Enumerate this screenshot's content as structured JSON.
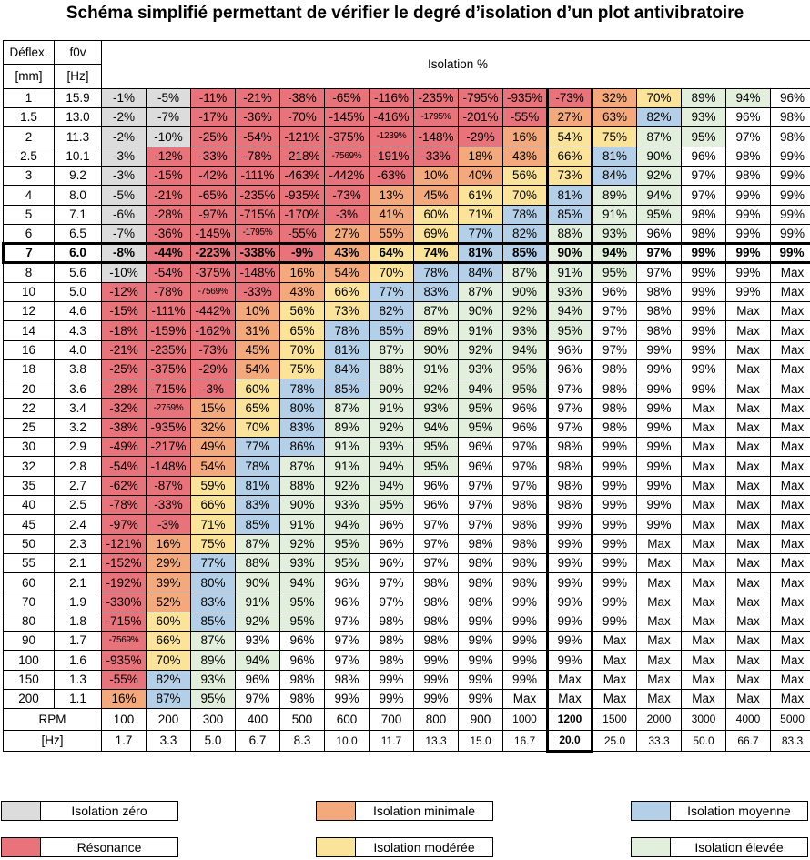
{
  "title": "Schéma simplifié permettant de vérifier le degré d’isolation d’un plot antivibratoire",
  "header": {
    "col1_row1": "Déflex.",
    "col1_row2": "[mm]",
    "col2_row1": "f0v",
    "col2_row2": "[Hz]",
    "isolation_label": "Isolation %"
  },
  "colors": {
    "zero": "#dcdcdc",
    "resonance": "#e8737a",
    "minimale": "#f3a97c",
    "moderee": "#fbe49a",
    "moyenne": "#b4cfe8",
    "elevee": "#e2efdc",
    "none": "#ffffff"
  },
  "highlight_row": "7",
  "highlight_col": 10,
  "rows": [
    {
      "d": "1",
      "f": "15.9",
      "v": [
        "-1%",
        "-5%",
        "-11%",
        "-21%",
        "-38%",
        "-65%",
        "-116%",
        "-235%",
        "-795%",
        "-935%",
        "-73%",
        "32%",
        "70%",
        "89%",
        "94%",
        "96%"
      ],
      "c": "ZZRRRRRRRRRMOEEN"
    },
    {
      "d": "1.5",
      "f": "13.0",
      "v": [
        "-2%",
        "-7%",
        "-17%",
        "-36%",
        "-70%",
        "-145%",
        "-416%",
        "-1795%",
        "-201%",
        "-55%",
        "27%",
        "63%",
        "82%",
        "93%",
        "96%",
        "98%"
      ],
      "c": "ZZRRRRRRRRMMBENN"
    },
    {
      "d": "2",
      "f": "11.3",
      "v": [
        "-2%",
        "-10%",
        "-25%",
        "-54%",
        "-121%",
        "-375%",
        "-1239%",
        "-148%",
        "-29%",
        "16%",
        "54%",
        "75%",
        "87%",
        "95%",
        "97%",
        "98%"
      ],
      "c": "ZZRRRRRRRMOOEENN"
    },
    {
      "d": "2.5",
      "f": "10.1",
      "v": [
        "-3%",
        "-12%",
        "-33%",
        "-78%",
        "-218%",
        "-7569%",
        "-191%",
        "-33%",
        "18%",
        "43%",
        "66%",
        "81%",
        "90%",
        "96%",
        "98%",
        "99%"
      ],
      "c": "ZRRRRRRRMMOBENNN"
    },
    {
      "d": "3",
      "f": "9.2",
      "v": [
        "-3%",
        "-15%",
        "-42%",
        "-111%",
        "-463%",
        "-442%",
        "-63%",
        "10%",
        "40%",
        "56%",
        "73%",
        "84%",
        "92%",
        "97%",
        "98%",
        "99%"
      ],
      "c": "ZRRRRRRMMOOBENNN"
    },
    {
      "d": "4",
      "f": "8.0",
      "v": [
        "-5%",
        "-21%",
        "-65%",
        "-235%",
        "-935%",
        "-73%",
        "13%",
        "45%",
        "61%",
        "70%",
        "81%",
        "89%",
        "94%",
        "97%",
        "99%",
        "99%"
      ],
      "c": "ZRRRRRMMOOBEENNN"
    },
    {
      "d": "5",
      "f": "7.1",
      "v": [
        "-6%",
        "-28%",
        "-97%",
        "-715%",
        "-170%",
        "-3%",
        "41%",
        "60%",
        "71%",
        "78%",
        "85%",
        "91%",
        "95%",
        "98%",
        "99%",
        "99%"
      ],
      "c": "ZRRRRRMOOBBEENNN"
    },
    {
      "d": "6",
      "f": "6.5",
      "v": [
        "-7%",
        "-36%",
        "-145%",
        "-1795%",
        "-55%",
        "27%",
        "55%",
        "69%",
        "77%",
        "82%",
        "88%",
        "93%",
        "96%",
        "98%",
        "99%",
        "99%"
      ],
      "c": "ZRRRRMMOBBEENNNN"
    },
    {
      "d": "7",
      "f": "6.0",
      "v": [
        "-8%",
        "-44%",
        "-223%",
        "-338%",
        "-9%",
        "43%",
        "64%",
        "74%",
        "81%",
        "85%",
        "90%",
        "94%",
        "97%",
        "99%",
        "99%",
        "99%"
      ],
      "c": "ZRRRRMOOBBEENNNN"
    },
    {
      "d": "8",
      "f": "5.6",
      "v": [
        "-10%",
        "-54%",
        "-375%",
        "-148%",
        "16%",
        "54%",
        "70%",
        "78%",
        "84%",
        "87%",
        "91%",
        "95%",
        "97%",
        "99%",
        "99%",
        "Max"
      ],
      "c": "ZRRRMMOBBEEENNNN"
    },
    {
      "d": "10",
      "f": "5.0",
      "v": [
        "-12%",
        "-78%",
        "-7569%",
        "-33%",
        "43%",
        "66%",
        "77%",
        "83%",
        "87%",
        "90%",
        "93%",
        "96%",
        "98%",
        "99%",
        "99%",
        "Max"
      ],
      "c": "RRRRMOBBEEENNNNN"
    },
    {
      "d": "12",
      "f": "4.6",
      "v": [
        "-15%",
        "-111%",
        "-442%",
        "10%",
        "56%",
        "73%",
        "82%",
        "87%",
        "90%",
        "92%",
        "94%",
        "97%",
        "98%",
        "99%",
        "Max",
        "Max"
      ],
      "c": "RRRMOOBEEEENNNNN"
    },
    {
      "d": "14",
      "f": "4.3",
      "v": [
        "-18%",
        "-159%",
        "-162%",
        "31%",
        "65%",
        "78%",
        "85%",
        "89%",
        "91%",
        "93%",
        "95%",
        "97%",
        "98%",
        "99%",
        "Max",
        "Max"
      ],
      "c": "RRRMOBBEEEENNNNN"
    },
    {
      "d": "16",
      "f": "4.0",
      "v": [
        "-21%",
        "-235%",
        "-73%",
        "45%",
        "70%",
        "81%",
        "87%",
        "90%",
        "92%",
        "94%",
        "96%",
        "97%",
        "99%",
        "99%",
        "Max",
        "Max"
      ],
      "c": "RRRMOBEEEENNNNNN"
    },
    {
      "d": "18",
      "f": "3.8",
      "v": [
        "-25%",
        "-375%",
        "-29%",
        "54%",
        "75%",
        "84%",
        "88%",
        "91%",
        "93%",
        "95%",
        "96%",
        "98%",
        "99%",
        "99%",
        "Max",
        "Max"
      ],
      "c": "RRRMOBEEEENNNNNN"
    },
    {
      "d": "20",
      "f": "3.6",
      "v": [
        "-28%",
        "-715%",
        "-3%",
        "60%",
        "78%",
        "85%",
        "90%",
        "92%",
        "94%",
        "95%",
        "97%",
        "98%",
        "99%",
        "99%",
        "Max",
        "Max"
      ],
      "c": "RRROBBEEEENNNNNN"
    },
    {
      "d": "22",
      "f": "3.4",
      "v": [
        "-32%",
        "-2759%",
        "15%",
        "65%",
        "80%",
        "87%",
        "91%",
        "93%",
        "95%",
        "96%",
        "97%",
        "98%",
        "99%",
        "Max",
        "Max",
        "Max"
      ],
      "c": "RRMOBEEEENNNNNNN"
    },
    {
      "d": "25",
      "f": "3.2",
      "v": [
        "-38%",
        "-935%",
        "32%",
        "70%",
        "83%",
        "89%",
        "92%",
        "94%",
        "95%",
        "96%",
        "97%",
        "98%",
        "99%",
        "Max",
        "Max",
        "Max"
      ],
      "c": "RRMOBEEEENNNNNNN"
    },
    {
      "d": "30",
      "f": "2.9",
      "v": [
        "-49%",
        "-217%",
        "49%",
        "77%",
        "86%",
        "91%",
        "93%",
        "95%",
        "96%",
        "97%",
        "98%",
        "99%",
        "99%",
        "Max",
        "Max",
        "Max"
      ],
      "c": "RRMBBEEENNNNNNNN"
    },
    {
      "d": "32",
      "f": "2.8",
      "v": [
        "-54%",
        "-148%",
        "54%",
        "78%",
        "87%",
        "91%",
        "94%",
        "95%",
        "96%",
        "97%",
        "98%",
        "99%",
        "99%",
        "Max",
        "Max",
        "Max"
      ],
      "c": "RRMBEEEENNNNNNNN"
    },
    {
      "d": "35",
      "f": "2.7",
      "v": [
        "-62%",
        "-87%",
        "59%",
        "81%",
        "88%",
        "92%",
        "94%",
        "96%",
        "97%",
        "97%",
        "98%",
        "99%",
        "99%",
        "Max",
        "Max",
        "Max"
      ],
      "c": "RROBEEENNNNNNNNN"
    },
    {
      "d": "40",
      "f": "2.5",
      "v": [
        "-78%",
        "-33%",
        "66%",
        "83%",
        "90%",
        "93%",
        "95%",
        "96%",
        "97%",
        "98%",
        "98%",
        "99%",
        "99%",
        "Max",
        "Max",
        "Max"
      ],
      "c": "RROBEEENNNNNNNNN"
    },
    {
      "d": "45",
      "f": "2.4",
      "v": [
        "-97%",
        "-3%",
        "71%",
        "85%",
        "91%",
        "94%",
        "96%",
        "97%",
        "97%",
        "98%",
        "99%",
        "99%",
        "99%",
        "Max",
        "Max",
        "Max"
      ],
      "c": "RROBEENNNNNNNNNN"
    },
    {
      "d": "50",
      "f": "2.3",
      "v": [
        "-121%",
        "16%",
        "75%",
        "87%",
        "92%",
        "95%",
        "96%",
        "97%",
        "98%",
        "98%",
        "99%",
        "99%",
        "Max",
        "Max",
        "Max",
        "Max"
      ],
      "c": "RMOEEENNNNNNNNNN"
    },
    {
      "d": "55",
      "f": "2.1",
      "v": [
        "-152%",
        "29%",
        "77%",
        "88%",
        "93%",
        "95%",
        "96%",
        "97%",
        "98%",
        "98%",
        "99%",
        "99%",
        "Max",
        "Max",
        "Max",
        "Max"
      ],
      "c": "RMBEEENNNNNNNNNN"
    },
    {
      "d": "60",
      "f": "2.1",
      "v": [
        "-192%",
        "39%",
        "80%",
        "90%",
        "94%",
        "96%",
        "97%",
        "98%",
        "98%",
        "98%",
        "99%",
        "99%",
        "Max",
        "Max",
        "Max",
        "Max"
      ],
      "c": "RMBEENNNNNNNNNNN"
    },
    {
      "d": "70",
      "f": "1.9",
      "v": [
        "-330%",
        "52%",
        "83%",
        "91%",
        "95%",
        "96%",
        "97%",
        "98%",
        "98%",
        "99%",
        "99%",
        "99%",
        "Max",
        "Max",
        "Max",
        "Max"
      ],
      "c": "RMBEENNNNNNNNNNN"
    },
    {
      "d": "80",
      "f": "1.8",
      "v": [
        "-715%",
        "60%",
        "85%",
        "92%",
        "95%",
        "97%",
        "98%",
        "98%",
        "99%",
        "99%",
        "99%",
        "99%",
        "Max",
        "Max",
        "Max",
        "Max"
      ],
      "c": "ROBEENNNNNNNNNNN"
    },
    {
      "d": "90",
      "f": "1.7",
      "v": [
        "-7569%",
        "66%",
        "87%",
        "93%",
        "96%",
        "97%",
        "98%",
        "98%",
        "99%",
        "99%",
        "99%",
        "Max",
        "Max",
        "Max",
        "Max",
        "Max"
      ],
      "c": "ROENNNNNNNNNNNNN"
    },
    {
      "d": "100",
      "f": "1.6",
      "v": [
        "-935%",
        "70%",
        "89%",
        "94%",
        "96%",
        "97%",
        "98%",
        "99%",
        "99%",
        "99%",
        "99%",
        "Max",
        "Max",
        "Max",
        "Max",
        "Max"
      ],
      "c": "ROEENNNNNNNNNNNN"
    },
    {
      "d": "150",
      "f": "1.3",
      "v": [
        "-55%",
        "82%",
        "93%",
        "96%",
        "98%",
        "98%",
        "99%",
        "99%",
        "99%",
        "99%",
        "Max",
        "Max",
        "Max",
        "Max",
        "Max",
        "Max"
      ],
      "c": "RBENNNNNNNNNNNNN"
    },
    {
      "d": "200",
      "f": "1.1",
      "v": [
        "16%",
        "87%",
        "95%",
        "97%",
        "98%",
        "99%",
        "99%",
        "99%",
        "99%",
        "Max",
        "Max",
        "Max",
        "Max",
        "Max",
        "Max",
        "Max"
      ],
      "c": "MBENNNNNNNNNNNNN"
    }
  ],
  "rpm_row": {
    "label": "RPM",
    "values": [
      "100",
      "200",
      "300",
      "400",
      "500",
      "600",
      "700",
      "800",
      "900",
      "1000",
      "1200",
      "1500",
      "2000",
      "3000",
      "4000",
      "5000"
    ]
  },
  "hz_row": {
    "label": "[Hz]",
    "values": [
      "1.7",
      "3.3",
      "5.0",
      "6.7",
      "8.3",
      "10.0",
      "11.7",
      "13.3",
      "15.0",
      "16.7",
      "20.0",
      "25.0",
      "33.3",
      "50.0",
      "66.7",
      "83.3"
    ]
  },
  "legend": {
    "zero": "Isolation zéro",
    "minimale": "Isolation minimale",
    "moyenne": "Isolation moyenne",
    "resonance": "Résonance",
    "moderee": "Isolation modérée",
    "elevee": "Isolation élevée"
  }
}
